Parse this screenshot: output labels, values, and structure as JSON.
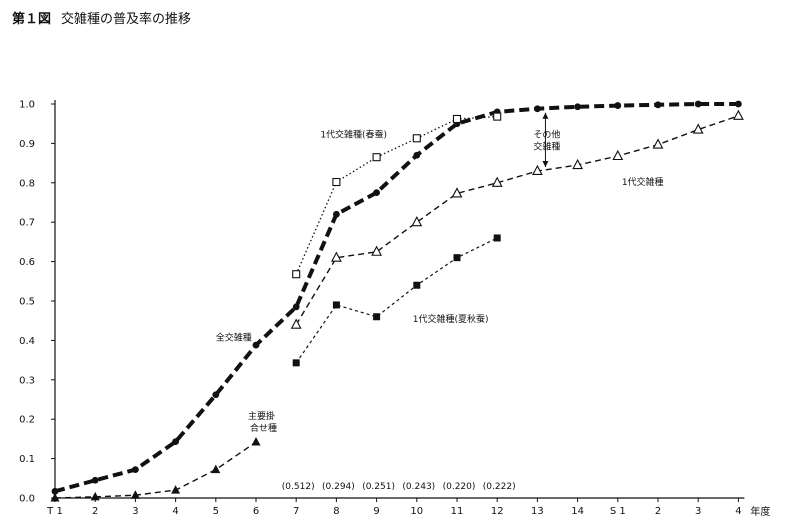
{
  "title": "第１図",
  "subtitle": "交雑種の普及率の推移",
  "chart_data": {
    "type": "line",
    "x_ticks": [
      "T 1",
      "2",
      "3",
      "4",
      "5",
      "6",
      "7",
      "8",
      "9",
      "10",
      "11",
      "12",
      "13",
      "14",
      "S 1",
      "2",
      "3",
      "4"
    ],
    "x_unit": "年度",
    "y_ticks": [
      "0.0",
      "0.1",
      "0.2",
      "0.3",
      "0.4",
      "0.5",
      "0.6",
      "0.7",
      "0.8",
      "0.9",
      "1.0"
    ],
    "ylim": [
      0,
      1.0
    ],
    "grid": false,
    "series": [
      {
        "name": "全交雑種",
        "style": "thick-dash",
        "marker": "dot",
        "points": [
          [
            0,
            0.017
          ],
          [
            1,
            0.045
          ],
          [
            2,
            0.072
          ],
          [
            3,
            0.143
          ],
          [
            4,
            0.262
          ],
          [
            5,
            0.388
          ],
          [
            6,
            0.485
          ],
          [
            7,
            0.72
          ],
          [
            8,
            0.775
          ],
          [
            9,
            0.87
          ],
          [
            10,
            0.95
          ],
          [
            11,
            0.98
          ],
          [
            12,
            0.988
          ],
          [
            13,
            0.993
          ],
          [
            14,
            0.996
          ],
          [
            15,
            0.998
          ],
          [
            16,
            1.0
          ],
          [
            17,
            1.0
          ]
        ]
      },
      {
        "name": "1代交雑種(春蚕)",
        "style": "dotted",
        "marker": "open-square",
        "points": [
          [
            6,
            0.568
          ],
          [
            7,
            0.802
          ],
          [
            8,
            0.865
          ],
          [
            9,
            0.913
          ],
          [
            10,
            0.962
          ],
          [
            11,
            0.968
          ]
        ]
      },
      {
        "name": "1代交雑種",
        "style": "dashed",
        "marker": "open-triangle",
        "points": [
          [
            6,
            0.44
          ],
          [
            7,
            0.61
          ],
          [
            8,
            0.625
          ],
          [
            9,
            0.7
          ],
          [
            10,
            0.773
          ],
          [
            11,
            0.8
          ],
          [
            12,
            0.83
          ],
          [
            13,
            0.845
          ],
          [
            14,
            0.868
          ],
          [
            15,
            0.897
          ],
          [
            16,
            0.935
          ],
          [
            17,
            0.97
          ]
        ]
      },
      {
        "name": "1代交雑種(夏秋蚕)",
        "style": "fine-dash",
        "marker": "filled-square",
        "points": [
          [
            6,
            0.343
          ],
          [
            7,
            0.49
          ],
          [
            8,
            0.46
          ],
          [
            9,
            0.54
          ],
          [
            10,
            0.61
          ],
          [
            11,
            0.66
          ]
        ]
      },
      {
        "name": "主要掛合せ種",
        "style": "dashed",
        "marker": "filled-triangle",
        "points": [
          [
            0,
            0.0
          ],
          [
            1,
            0.003
          ],
          [
            2,
            0.007
          ],
          [
            3,
            0.02
          ],
          [
            4,
            0.072
          ],
          [
            5,
            0.142
          ]
        ]
      }
    ],
    "annotations": [
      {
        "text": "1代交雑種(春蚕)",
        "x": 6.6,
        "y": 0.915
      },
      {
        "text": "その他",
        "x": 11.9,
        "y": 0.915
      },
      {
        "text": "交雑種",
        "x": 11.9,
        "y": 0.885
      },
      {
        "text": "1代交雑種",
        "x": 14.1,
        "y": 0.795
      },
      {
        "text": "全交雑種",
        "x": 4.0,
        "y": 0.4
      },
      {
        "text": "1代交雑種(夏秋蚕)",
        "x": 8.9,
        "y": 0.447
      },
      {
        "text": "主要掛",
        "x": 4.8,
        "y": 0.2
      },
      {
        "text": "合せ種",
        "x": 4.85,
        "y": 0.17
      }
    ],
    "bottom_values": [
      "(0.512)",
      "(0.294)",
      "(0.251)",
      "(0.243)",
      "(0.220)",
      "(0.222)"
    ],
    "bottom_value_x": [
      6,
      7,
      8,
      9,
      10,
      11
    ],
    "other_bracket": {
      "x": 12.2,
      "y_top": 0.988,
      "y_bottom": 0.83
    }
  }
}
